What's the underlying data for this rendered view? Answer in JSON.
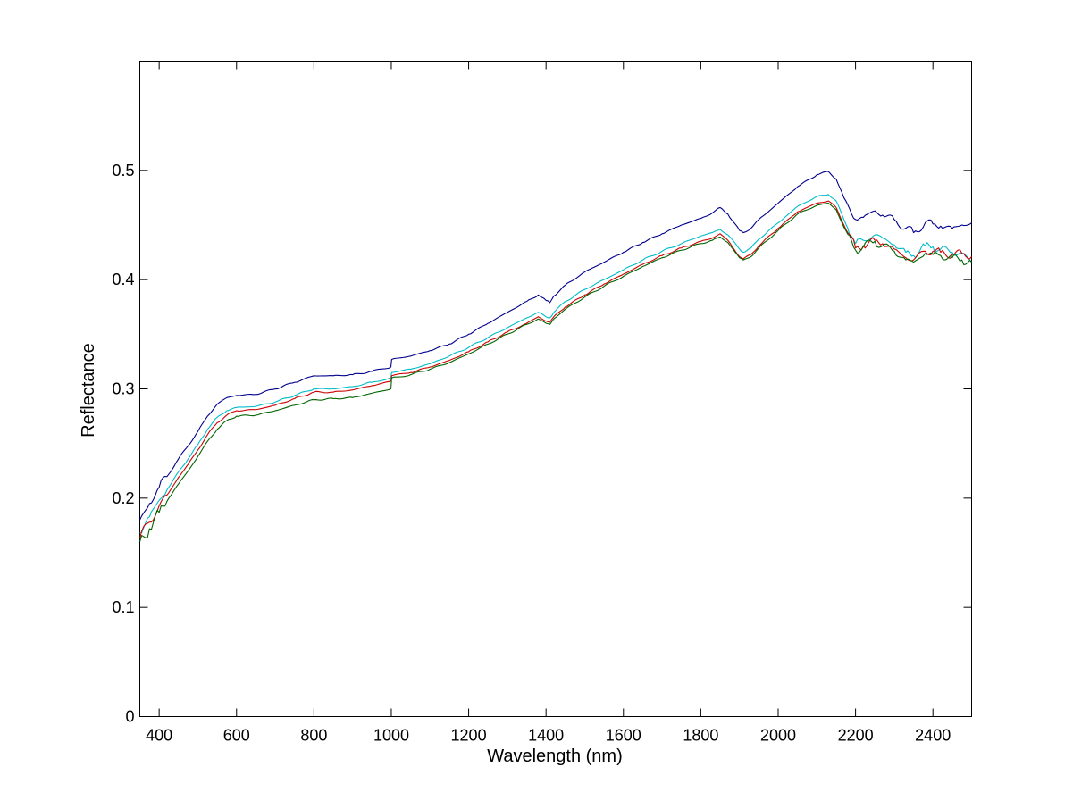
{
  "chart_data": {
    "type": "line",
    "title": "",
    "xlabel": "Wavelength (nm)",
    "ylabel": "Reflectance",
    "xlim": [
      350,
      2500
    ],
    "ylim": [
      0,
      0.6
    ],
    "x_ticks": [
      400,
      600,
      800,
      1000,
      1200,
      1400,
      1600,
      1800,
      2000,
      2200,
      2400
    ],
    "y_ticks": [
      0,
      0.1,
      0.2,
      0.3,
      0.4,
      0.5
    ],
    "x_tick_labels": [
      "400",
      "600",
      "800",
      "1000",
      "1200",
      "1400",
      "1600",
      "1800",
      "2000",
      "2200",
      "2400"
    ],
    "y_tick_labels": [
      "0",
      "0.1",
      "0.2",
      "0.3",
      "0.4",
      "0.5"
    ],
    "grid": false,
    "legend": "none",
    "x": [
      350,
      375,
      400,
      425,
      450,
      475,
      500,
      525,
      550,
      575,
      600,
      650,
      700,
      750,
      800,
      850,
      900,
      950,
      999,
      1001,
      1050,
      1100,
      1150,
      1200,
      1250,
      1300,
      1350,
      1380,
      1400,
      1410,
      1420,
      1450,
      1500,
      1550,
      1600,
      1650,
      1700,
      1750,
      1800,
      1830,
      1850,
      1870,
      1900,
      1910,
      1930,
      1950,
      2000,
      2050,
      2100,
      2130,
      2150,
      2170,
      2200,
      2220,
      2250,
      2270,
      2300,
      2330,
      2350,
      2380,
      2400,
      2420,
      2450,
      2475,
      2500
    ],
    "series": [
      {
        "color": "#00008b",
        "values": [
          0.18,
          0.195,
          0.21,
          0.222,
          0.236,
          0.248,
          0.261,
          0.275,
          0.286,
          0.292,
          0.294,
          0.295,
          0.3,
          0.306,
          0.312,
          0.312,
          0.313,
          0.316,
          0.32,
          0.327,
          0.33,
          0.335,
          0.341,
          0.35,
          0.36,
          0.37,
          0.38,
          0.386,
          0.381,
          0.379,
          0.385,
          0.395,
          0.407,
          0.416,
          0.425,
          0.434,
          0.442,
          0.45,
          0.456,
          0.461,
          0.466,
          0.46,
          0.445,
          0.443,
          0.447,
          0.455,
          0.47,
          0.485,
          0.496,
          0.499,
          0.492,
          0.475,
          0.455,
          0.457,
          0.463,
          0.459,
          0.455,
          0.447,
          0.443,
          0.452,
          0.451,
          0.449,
          0.447,
          0.45,
          0.452
        ]
      },
      {
        "color": "#00bcc8",
        "values": [
          0.168,
          0.183,
          0.198,
          0.21,
          0.224,
          0.236,
          0.249,
          0.263,
          0.274,
          0.28,
          0.283,
          0.284,
          0.288,
          0.294,
          0.3,
          0.3,
          0.302,
          0.306,
          0.31,
          0.315,
          0.318,
          0.323,
          0.33,
          0.338,
          0.347,
          0.356,
          0.365,
          0.37,
          0.366,
          0.365,
          0.37,
          0.38,
          0.391,
          0.4,
          0.409,
          0.418,
          0.426,
          0.433,
          0.44,
          0.443,
          0.446,
          0.441,
          0.428,
          0.425,
          0.429,
          0.437,
          0.452,
          0.467,
          0.476,
          0.478,
          0.472,
          0.455,
          0.433,
          0.436,
          0.441,
          0.438,
          0.432,
          0.425,
          0.422,
          0.431,
          0.43,
          0.428,
          0.425,
          0.424,
          0.416
        ]
      },
      {
        "color": "#cc0000",
        "values": [
          0.163,
          0.178,
          0.193,
          0.205,
          0.219,
          0.231,
          0.244,
          0.258,
          0.269,
          0.276,
          0.28,
          0.281,
          0.285,
          0.291,
          0.297,
          0.297,
          0.299,
          0.303,
          0.307,
          0.312,
          0.315,
          0.32,
          0.326,
          0.334,
          0.343,
          0.352,
          0.36,
          0.366,
          0.362,
          0.361,
          0.366,
          0.375,
          0.386,
          0.396,
          0.405,
          0.414,
          0.422,
          0.429,
          0.435,
          0.438,
          0.442,
          0.436,
          0.421,
          0.419,
          0.423,
          0.431,
          0.447,
          0.462,
          0.47,
          0.472,
          0.466,
          0.45,
          0.429,
          0.431,
          0.436,
          0.433,
          0.428,
          0.42,
          0.418,
          0.426,
          0.426,
          0.425,
          0.423,
          0.424,
          0.421
        ]
      },
      {
        "color": "#006400",
        "values": [
          0.16,
          0.172,
          0.187,
          0.2,
          0.213,
          0.225,
          0.238,
          0.252,
          0.263,
          0.271,
          0.275,
          0.276,
          0.28,
          0.285,
          0.29,
          0.291,
          0.292,
          0.296,
          0.3,
          0.31,
          0.313,
          0.318,
          0.324,
          0.332,
          0.341,
          0.35,
          0.359,
          0.364,
          0.36,
          0.359,
          0.364,
          0.373,
          0.384,
          0.394,
          0.403,
          0.412,
          0.42,
          0.427,
          0.433,
          0.436,
          0.439,
          0.434,
          0.42,
          0.418,
          0.421,
          0.429,
          0.445,
          0.46,
          0.468,
          0.47,
          0.464,
          0.448,
          0.427,
          0.43,
          0.435,
          0.431,
          0.426,
          0.418,
          0.416,
          0.424,
          0.423,
          0.422,
          0.42,
          0.418,
          0.416
        ]
      }
    ]
  }
}
